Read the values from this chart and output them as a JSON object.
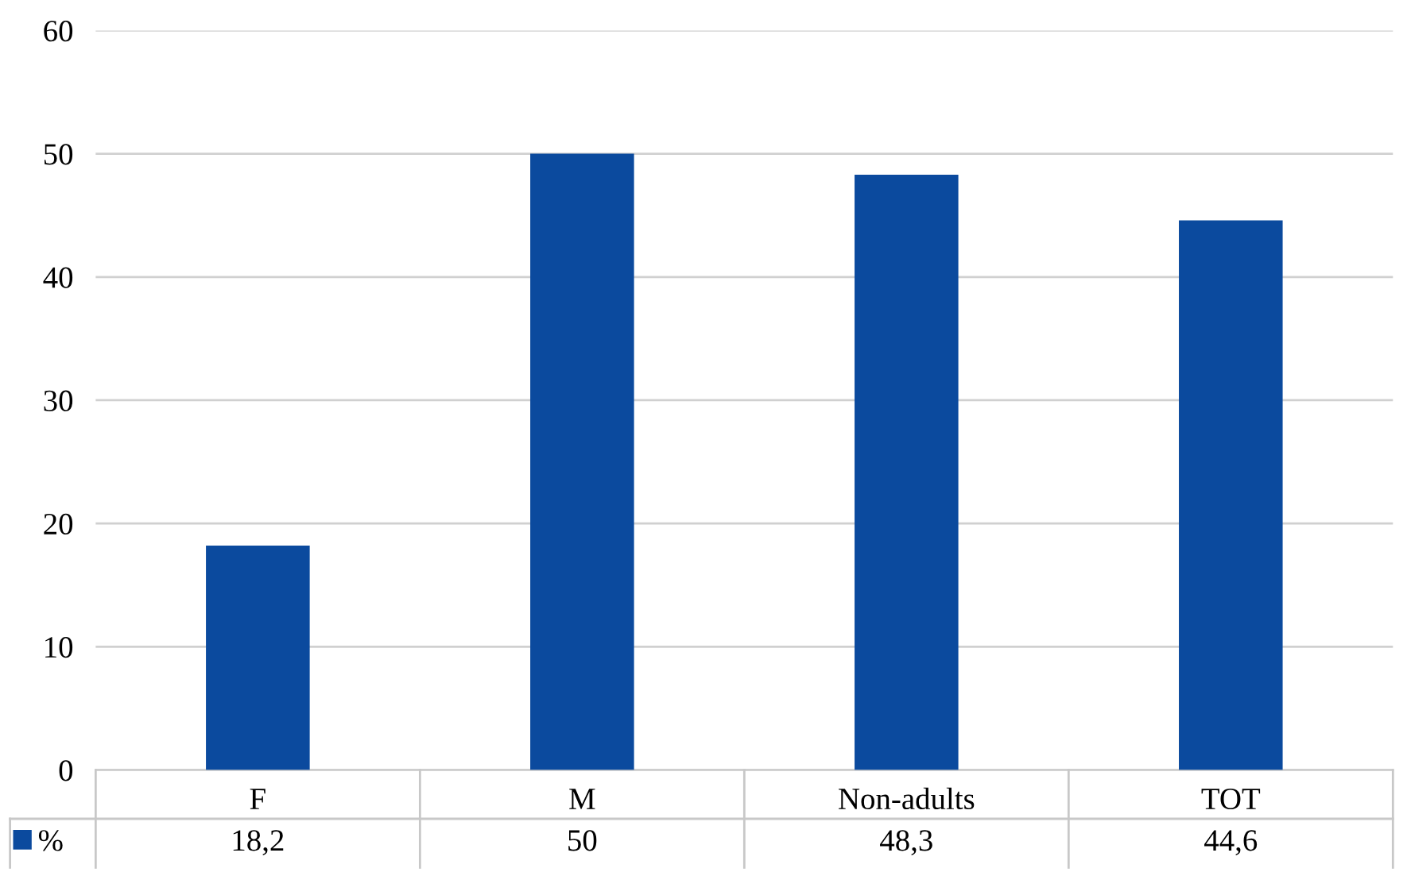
{
  "chart_data": {
    "type": "bar",
    "categories": [
      "F",
      "M",
      "Non-adults",
      "TOT"
    ],
    "series": [
      {
        "name": "%",
        "color": "#0b4a9e",
        "values": [
          18.2,
          50,
          48.3,
          44.6
        ],
        "value_labels": [
          "18,2",
          "50",
          "48,3",
          "44,6"
        ]
      }
    ],
    "ylim": [
      0,
      60
    ],
    "yticks": [
      0,
      10,
      20,
      30,
      40,
      50,
      60
    ],
    "grid": "y",
    "legend": "bottom left"
  }
}
